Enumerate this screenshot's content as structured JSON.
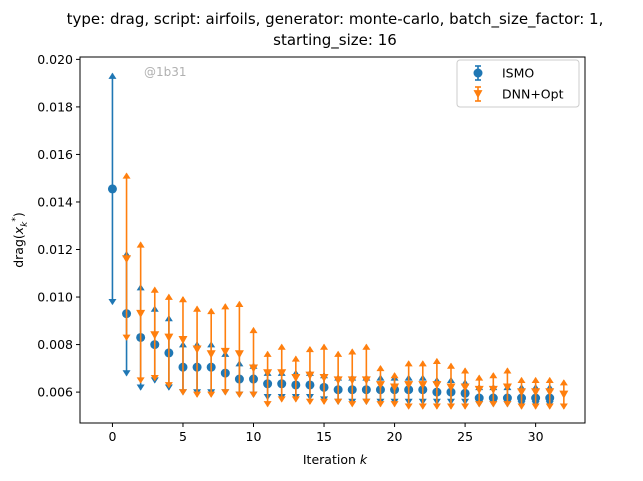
{
  "chart_data": {
    "type": "scatter",
    "title_lines": [
      "type: drag, script: airfoils, generator: monte-carlo, batch_size_factor: 1,",
      "starting_size: 16"
    ],
    "xlabel": "Iteration k",
    "ylabel": "drag(x_k^*)",
    "xlim": [
      -2.3,
      33.5
    ],
    "ylim": [
      0.0047,
      0.0201
    ],
    "xticks": [
      0,
      5,
      10,
      15,
      20,
      25,
      30
    ],
    "yticks": [
      0.006,
      0.008,
      0.01,
      0.012,
      0.014,
      0.016,
      0.018,
      0.02
    ],
    "ytick_labels": [
      "0.006",
      "0.008",
      "0.010",
      "0.012",
      "0.014",
      "0.016",
      "0.018",
      "0.020"
    ],
    "legend_position": "top-right",
    "watermark": "@1b31",
    "series": [
      {
        "name": "ISMO",
        "color": "#1f77b4",
        "marker": "circle",
        "x_offset": 0,
        "x": [
          0,
          1,
          2,
          3,
          4,
          5,
          6,
          7,
          8,
          9,
          10,
          11,
          12,
          13,
          14,
          15,
          16,
          17,
          18,
          19,
          20,
          21,
          22,
          23,
          24,
          25,
          26,
          27,
          28,
          29,
          30,
          31
        ],
        "y": [
          0.01455,
          0.0093,
          0.0083,
          0.008,
          0.00765,
          0.00705,
          0.00705,
          0.00705,
          0.0068,
          0.00655,
          0.00655,
          0.00635,
          0.00635,
          0.0063,
          0.0063,
          0.0062,
          0.0061,
          0.0061,
          0.0061,
          0.0061,
          0.0061,
          0.0061,
          0.0061,
          0.006,
          0.006,
          0.00595,
          0.00575,
          0.00575,
          0.00575,
          0.00575,
          0.00575,
          0.00575
        ],
        "y_low": [
          0.0097,
          0.0067,
          0.0061,
          0.0064,
          0.0061,
          0.0059,
          0.0059,
          0.0059,
          0.0059,
          0.0058,
          0.0058,
          0.0057,
          0.0057,
          0.0057,
          0.0057,
          0.0056,
          0.0055,
          0.0055,
          0.0055,
          0.0055,
          0.0055,
          0.0055,
          0.0055,
          0.0055,
          0.0055,
          0.0055,
          0.0054,
          0.0054,
          0.0054,
          0.0054,
          0.0054,
          0.0054
        ],
        "y_high": [
          0.0194,
          0.0119,
          0.0105,
          0.0096,
          0.0092,
          0.0081,
          0.0081,
          0.0081,
          0.0077,
          0.0073,
          0.0072,
          0.0069,
          0.0069,
          0.0069,
          0.0069,
          0.0068,
          0.0067,
          0.0067,
          0.0067,
          0.0067,
          0.0067,
          0.0067,
          0.0067,
          0.0066,
          0.0066,
          0.0065,
          0.0063,
          0.0063,
          0.0063,
          0.0063,
          0.0063,
          0.0063
        ]
      },
      {
        "name": "DNN+Opt",
        "color": "#ff7f0e",
        "marker": "triangle-down",
        "x_offset": 1,
        "x": [
          0,
          1,
          2,
          3,
          4,
          5,
          6,
          7,
          8,
          9,
          10,
          11,
          12,
          13,
          14,
          15,
          16,
          17,
          18,
          19,
          20,
          21,
          22,
          23,
          24,
          25,
          26,
          27,
          28,
          29,
          30,
          31
        ],
        "y": [
          0.0116,
          0.0093,
          0.0084,
          0.0083,
          0.0082,
          0.0078,
          0.0076,
          0.0077,
          0.0076,
          0.007,
          0.0068,
          0.0068,
          0.0066,
          0.0067,
          0.0066,
          0.0065,
          0.0065,
          0.0065,
          0.0063,
          0.0062,
          0.0063,
          0.0063,
          0.0063,
          0.0062,
          0.0062,
          0.0061,
          0.0061,
          0.0062,
          0.006,
          0.006,
          0.006,
          0.0059
        ],
        "y_low": [
          0.0082,
          0.0064,
          0.0065,
          0.0062,
          0.0059,
          0.0058,
          0.0058,
          0.0059,
          0.0058,
          0.0058,
          0.0054,
          0.0056,
          0.0056,
          0.0055,
          0.0055,
          0.0055,
          0.0054,
          0.0055,
          0.0054,
          0.0054,
          0.0053,
          0.0053,
          0.0053,
          0.0053,
          0.0053,
          0.0054,
          0.0054,
          0.0054,
          0.0053,
          0.0053,
          0.0053,
          0.0053
        ],
        "y_high": [
          0.0152,
          0.0123,
          0.0104,
          0.0101,
          0.01,
          0.0096,
          0.0095,
          0.0097,
          0.0098,
          0.0087,
          0.0077,
          0.008,
          0.0075,
          0.0079,
          0.008,
          0.0077,
          0.0078,
          0.008,
          0.0071,
          0.0068,
          0.0073,
          0.0073,
          0.0074,
          0.0072,
          0.007,
          0.0067,
          0.0068,
          0.007,
          0.0066,
          0.0066,
          0.0066,
          0.0065
        ]
      }
    ]
  }
}
